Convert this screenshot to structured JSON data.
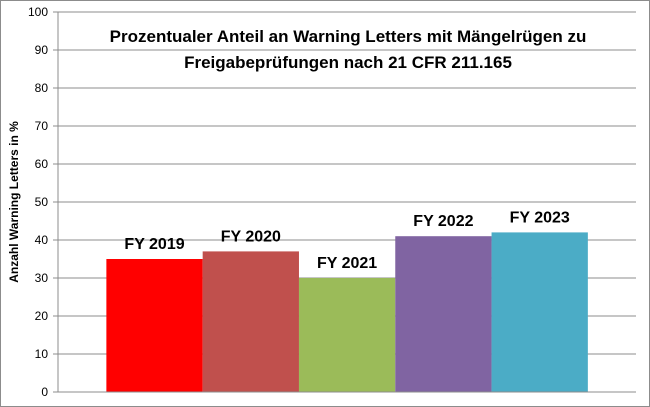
{
  "chart_data": {
    "type": "bar",
    "title_lines": [
      "Prozentualer Anteil an Warning Letters mit Mängelrügen zu",
      "Freigabeprüfungen nach 21 CFR 211.165"
    ],
    "ylabel": "Anzahl Warning Letters in %",
    "xlabel": "",
    "ylim": [
      0,
      100
    ],
    "yticks": [
      "0",
      "10",
      "20",
      "30",
      "40",
      "50",
      "60",
      "70",
      "80",
      "90",
      "100"
    ],
    "grid": true,
    "categories": [
      "FY 2019",
      "FY 2020",
      "FY 2021",
      "FY 2022",
      "FY 2023"
    ],
    "values": [
      35,
      37,
      30,
      41,
      42
    ],
    "colors": [
      "#ff0000",
      "#c0504d",
      "#9bbb59",
      "#8064a2",
      "#4bacc6"
    ]
  }
}
